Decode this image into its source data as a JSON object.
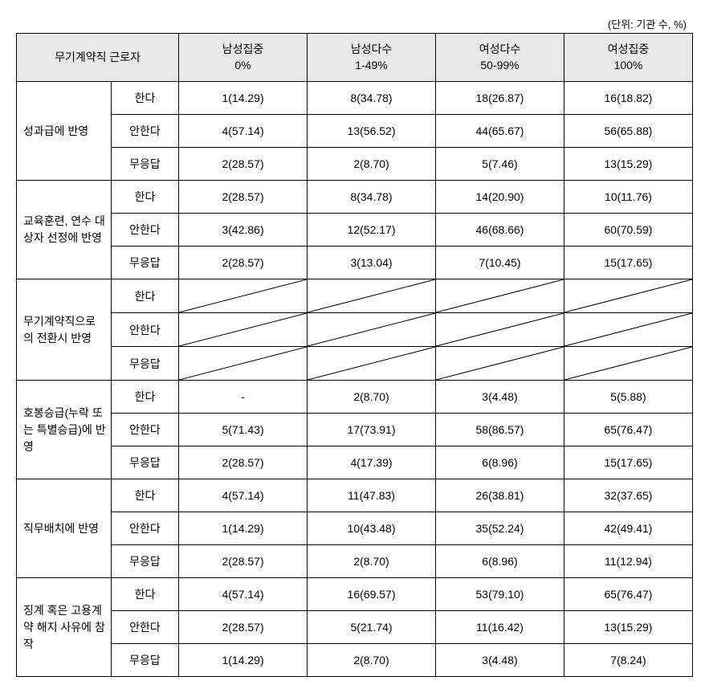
{
  "unit_label": "(단위: 기관 수, %)",
  "header": {
    "main": "무기계약직 근로자",
    "cols": [
      {
        "l1": "남성집중",
        "l2": "0%"
      },
      {
        "l1": "남성다수",
        "l2": "1-49%"
      },
      {
        "l1": "여성다수",
        "l2": "50-99%"
      },
      {
        "l1": "여성집중",
        "l2": "100%"
      }
    ]
  },
  "sub_labels": {
    "yes": "한다",
    "no": "안한다",
    "na": "무응답"
  },
  "groups": [
    {
      "label": "성과급에 반영",
      "rows": [
        {
          "sub": "yes",
          "vals": [
            "1(14.29)",
            "8(34.78)",
            "18(26.87)",
            "16(18.82)"
          ]
        },
        {
          "sub": "no",
          "vals": [
            "4(57.14)",
            "13(56.52)",
            "44(65.67)",
            "56(65.88)"
          ]
        },
        {
          "sub": "na",
          "vals": [
            "2(28.57)",
            "2(8.70)",
            "5(7.46)",
            "13(15.29)"
          ]
        }
      ]
    },
    {
      "label": "교육훈련, 연수 대상자 선정에 반영",
      "rows": [
        {
          "sub": "yes",
          "vals": [
            "2(28.57)",
            "8(34.78)",
            "14(20.90)",
            "10(11.76)"
          ]
        },
        {
          "sub": "no",
          "vals": [
            "3(42.86)",
            "12(52.17)",
            "46(68.66)",
            "60(70.59)"
          ]
        },
        {
          "sub": "na",
          "vals": [
            "2(28.57)",
            "3(13.04)",
            "7(10.45)",
            "15(17.65)"
          ]
        }
      ]
    },
    {
      "label": "무기계약직으로의 전환시 반영",
      "diagonal": true,
      "rows": [
        {
          "sub": "yes",
          "vals": [
            "",
            "",
            "",
            ""
          ]
        },
        {
          "sub": "no",
          "vals": [
            "",
            "",
            "",
            ""
          ]
        },
        {
          "sub": "na",
          "vals": [
            "",
            "",
            "",
            ""
          ]
        }
      ]
    },
    {
      "label": "호봉승급(누락 또는 특별승급)에 반영",
      "rows": [
        {
          "sub": "yes",
          "vals": [
            "-",
            "2(8.70)",
            "3(4.48)",
            "5(5.88)"
          ]
        },
        {
          "sub": "no",
          "vals": [
            "5(71.43)",
            "17(73.91)",
            "58(86.57)",
            "65(76.47)"
          ]
        },
        {
          "sub": "na",
          "vals": [
            "2(28.57)",
            "4(17.39)",
            "6(8.96)",
            "15(17.65)"
          ]
        }
      ]
    },
    {
      "label": "직무배치에 반영",
      "rows": [
        {
          "sub": "yes",
          "vals": [
            "4(57.14)",
            "11(47.83)",
            "26(38.81)",
            "32(37.65)"
          ]
        },
        {
          "sub": "no",
          "vals": [
            "1(14.29)",
            "10(43.48)",
            "35(52.24)",
            "42(49.41)"
          ]
        },
        {
          "sub": "na",
          "vals": [
            "2(28.57)",
            "2(8.70)",
            "6(8.96)",
            "11(12.94)"
          ]
        }
      ]
    },
    {
      "label": "징계 혹은 고용계약 해지 사유에 참작",
      "rows": [
        {
          "sub": "yes",
          "vals": [
            "4(57.14)",
            "16(69.57)",
            "53(79.10)",
            "65(76.47)"
          ]
        },
        {
          "sub": "no",
          "vals": [
            "2(28.57)",
            "5(21.74)",
            "11(16.42)",
            "13(15.29)"
          ]
        },
        {
          "sub": "na",
          "vals": [
            "1(14.29)",
            "2(8.70)",
            "3(4.48)",
            "7(8.24)"
          ]
        }
      ]
    }
  ],
  "style": {
    "border_color": "#000000",
    "header_bg": "#e8e8e8",
    "diag_stroke": "#000000",
    "diag_stroke_width": 1
  }
}
